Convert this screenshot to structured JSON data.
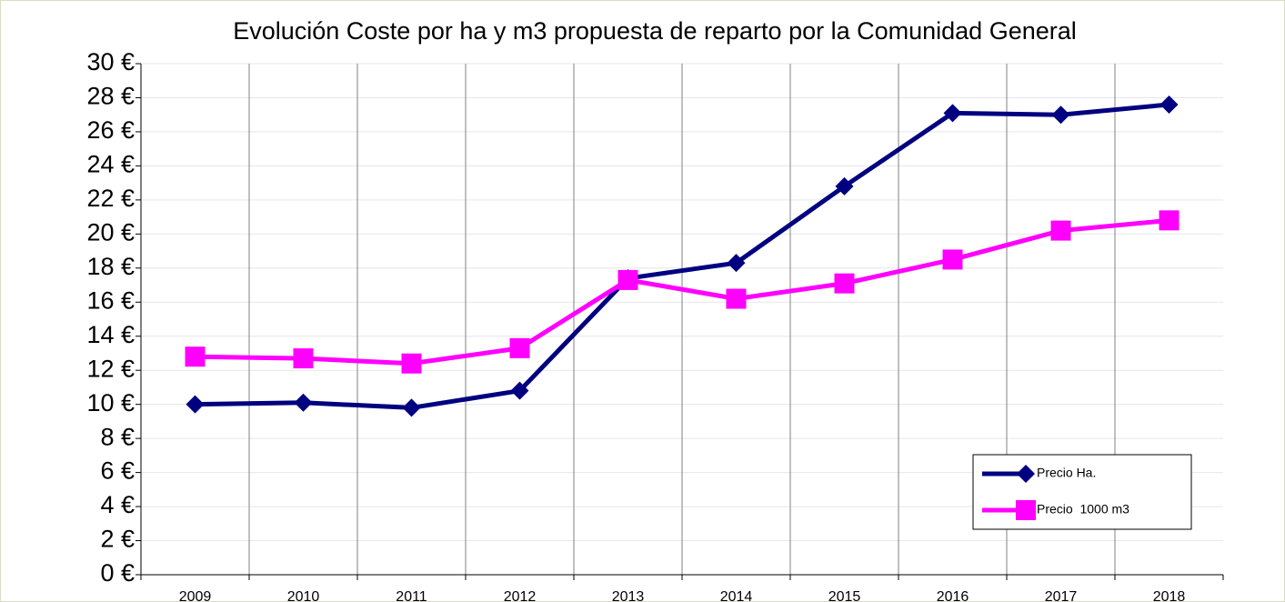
{
  "chart_data": {
    "type": "line",
    "title": "Evolución Coste por ha y m3 propuesta de reparto por la Comunidad General",
    "categories": [
      "2009",
      "2010",
      "2011",
      "2012",
      "2013",
      "2014",
      "2015",
      "2016",
      "2017",
      "2018"
    ],
    "series": [
      {
        "name": "Precio Ha.",
        "color": "#000080",
        "marker": "diamond",
        "values": [
          10.0,
          10.1,
          9.8,
          10.8,
          17.4,
          18.3,
          22.8,
          27.1,
          27.0,
          27.6
        ]
      },
      {
        "name": "Precio  1000 m3",
        "color": "#ff00ff",
        "marker": "square",
        "values": [
          12.8,
          12.7,
          12.4,
          13.3,
          17.3,
          16.2,
          17.1,
          18.5,
          20.2,
          20.8
        ]
      }
    ],
    "ylim": [
      0,
      30
    ],
    "yticks": [
      {
        "value": 0,
        "label": "0 €"
      },
      {
        "value": 2,
        "label": "2 €"
      },
      {
        "value": 4,
        "label": "4 €"
      },
      {
        "value": 6,
        "label": "6 €"
      },
      {
        "value": 8,
        "label": "8 €"
      },
      {
        "value": 10,
        "label": "10 €"
      },
      {
        "value": 12,
        "label": "12 €"
      },
      {
        "value": 14,
        "label": "14 €"
      },
      {
        "value": 16,
        "label": "16 €"
      },
      {
        "value": 18,
        "label": "18 €"
      },
      {
        "value": 20,
        "label": "20 €"
      },
      {
        "value": 22,
        "label": "22 €"
      },
      {
        "value": 24,
        "label": "24 €"
      },
      {
        "value": 26,
        "label": "26 €"
      },
      {
        "value": 28,
        "label": "28 €"
      },
      {
        "value": 30,
        "label": "30 €"
      }
    ],
    "grid": true,
    "legend": "lower right"
  }
}
